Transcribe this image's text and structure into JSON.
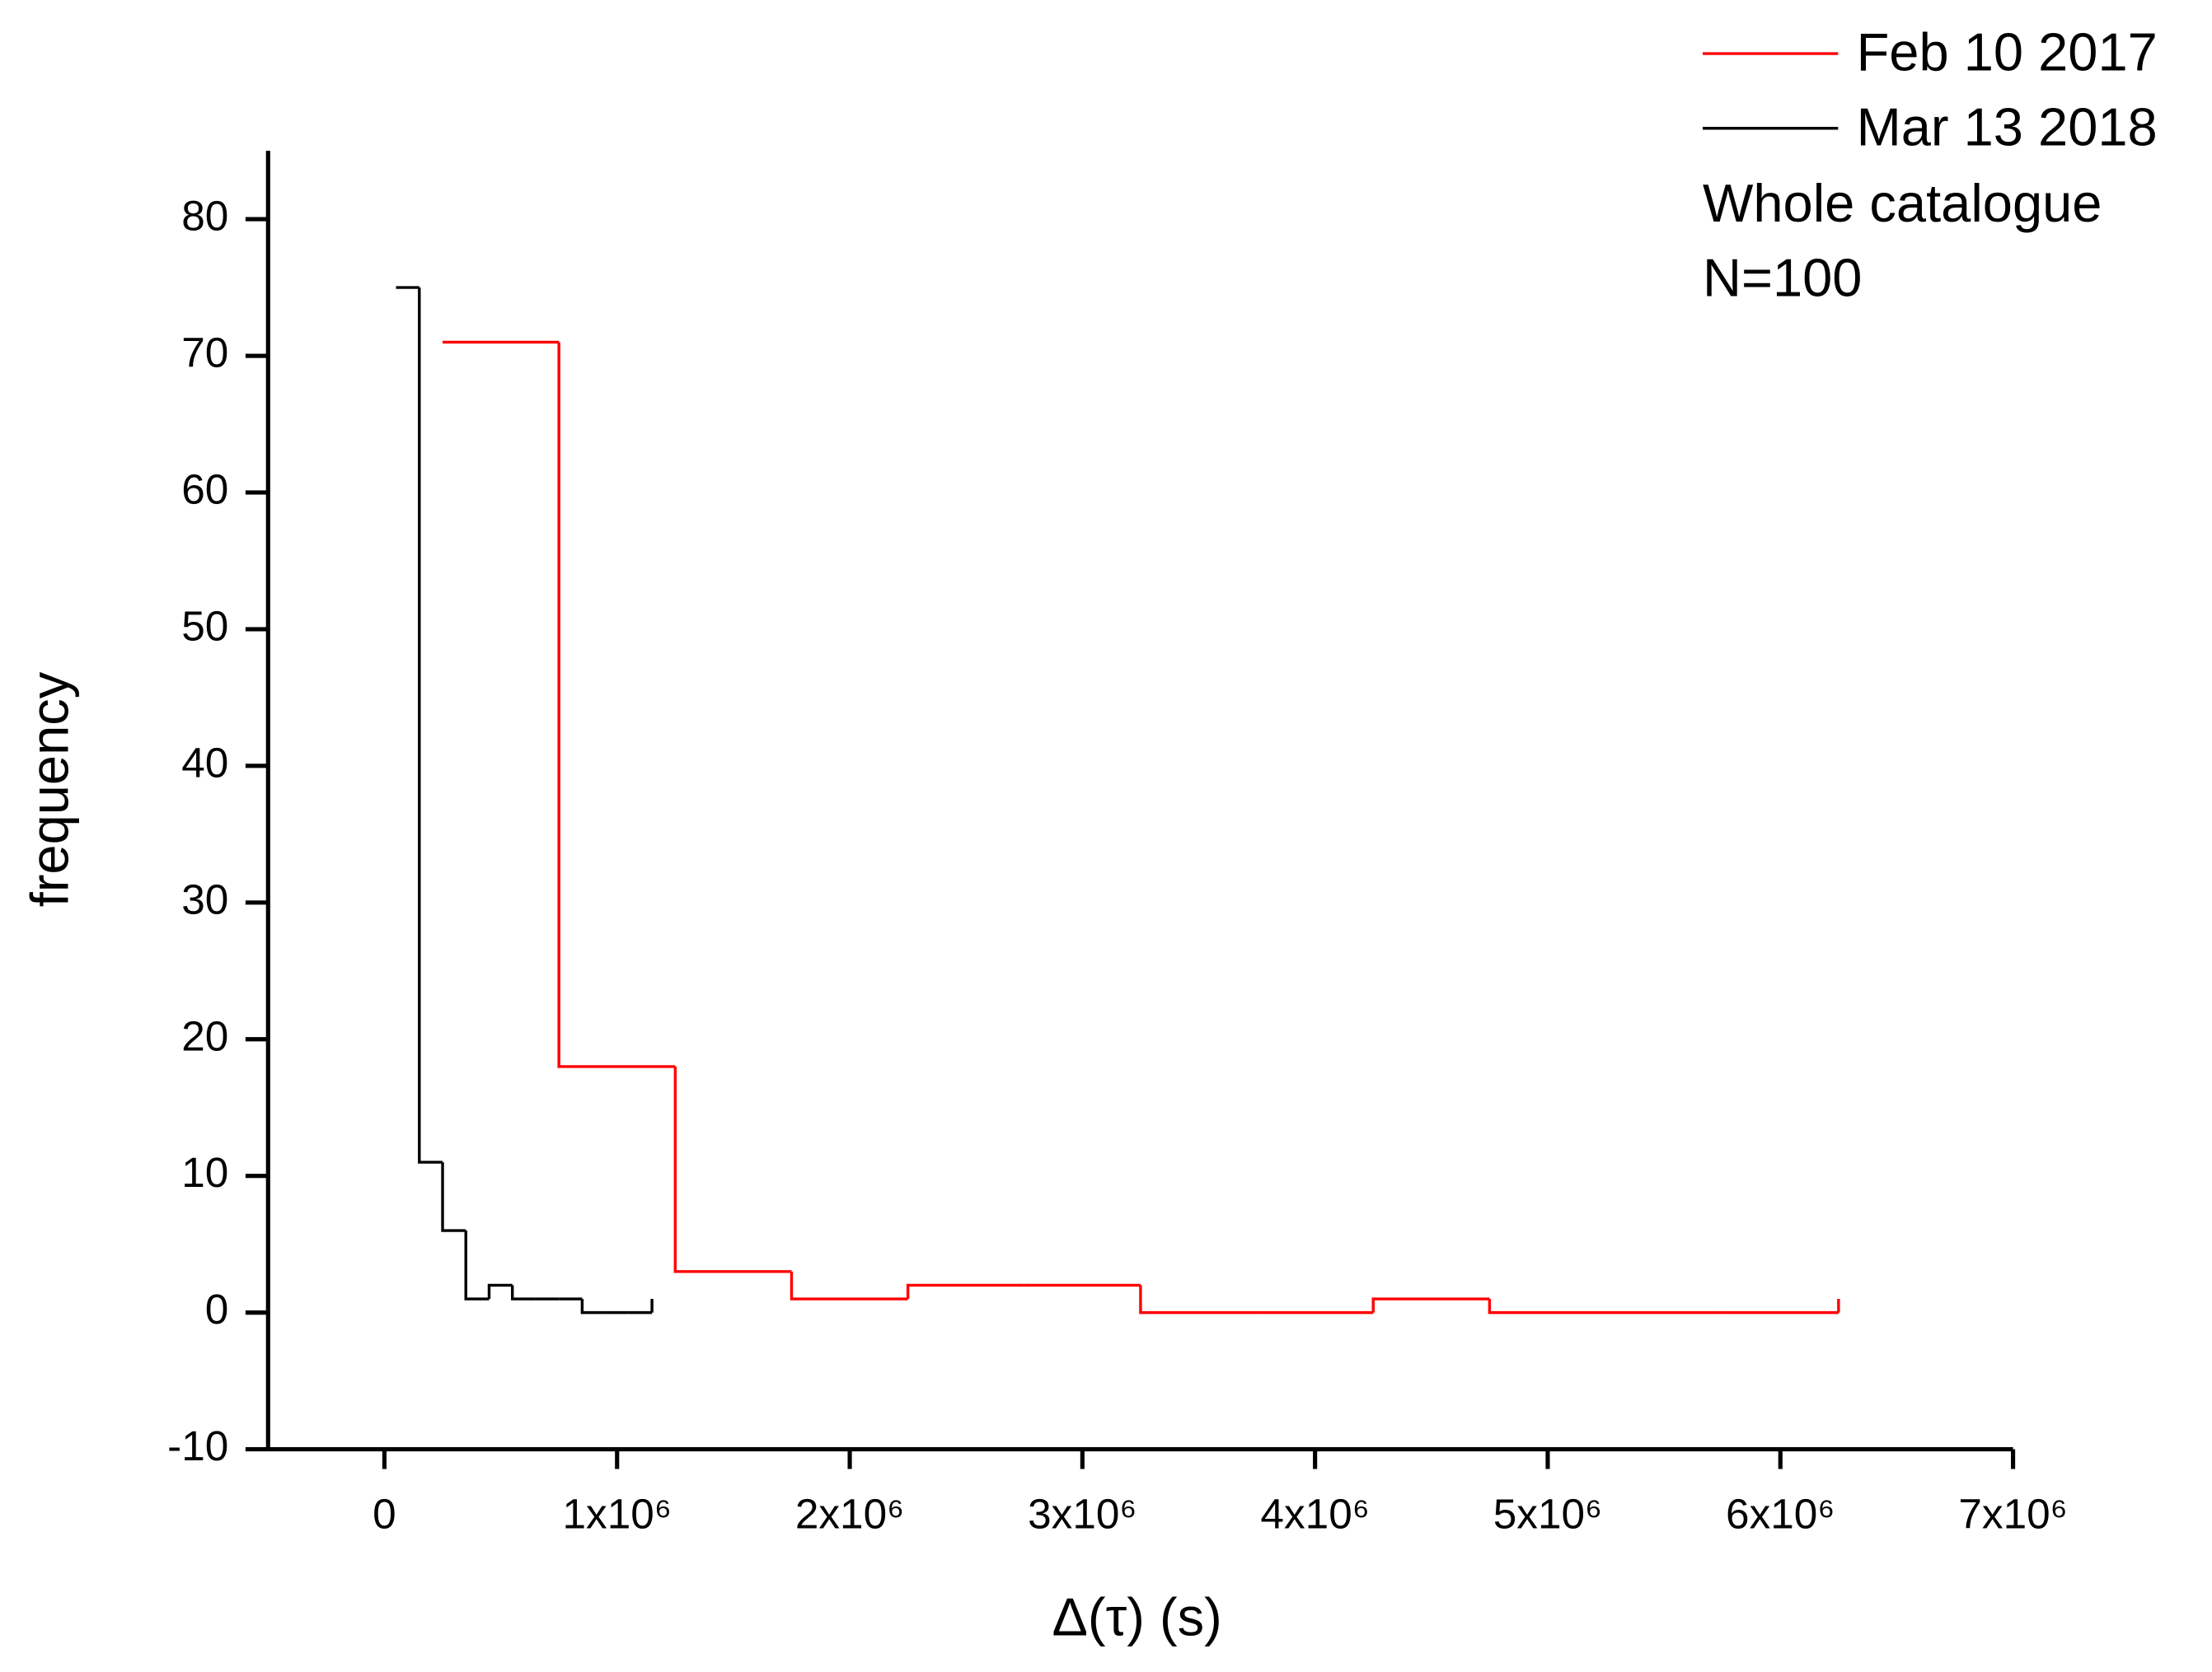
{
  "chart_data": {
    "type": "step",
    "xlabel": "Δ(τ) (s)",
    "ylabel": "frequency",
    "annotations": [
      "Whole catalogue",
      "N=100"
    ],
    "legend": "upper right",
    "xlim": [
      -500000,
      7000000
    ],
    "xticks": [
      0,
      {
        "value": 1000000,
        "label": "1x10⁶"
      },
      {
        "value": 2000000,
        "label": "2x10⁶"
      },
      {
        "value": 3000000,
        "label": "3x10⁶"
      },
      {
        "value": 4000000,
        "label": "4x10⁶"
      },
      {
        "value": 5000000,
        "label": "5x10⁶"
      },
      {
        "value": 6000000,
        "label": "6x10⁶"
      },
      {
        "value": 7000000,
        "label": "7x10⁶"
      }
    ],
    "ylim": [
      -10,
      85
    ],
    "yticks": [
      -10,
      0,
      10,
      20,
      30,
      40,
      50,
      60,
      70,
      80
    ],
    "series": [
      {
        "name": "Feb 10 2017",
        "color": "#ff0000",
        "x": [
          250000,
          750000,
          1250000,
          1750000,
          2250000,
          2750000,
          3250000,
          3750000,
          4250000,
          4750000,
          5250000,
          5750000,
          6250000
        ],
        "values": [
          71,
          18,
          3,
          1,
          2,
          2,
          0,
          0,
          1,
          0,
          0,
          0,
          1
        ]
      },
      {
        "name": "Mar 13 2018",
        "color": "#000000",
        "x": [
          50000,
          150000,
          250000,
          350000,
          450000,
          550000,
          650000,
          750000,
          850000,
          950000,
          1050000,
          1150000
        ],
        "values": [
          75,
          11,
          6,
          1,
          2,
          1,
          1,
          1,
          0,
          0,
          0,
          1
        ]
      }
    ]
  }
}
